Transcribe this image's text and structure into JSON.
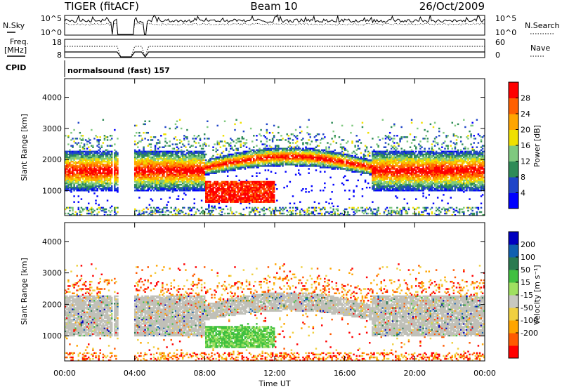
{
  "header": {
    "radar": "TIGER (fitACF)",
    "beam": "Beam 10",
    "date": "26/Oct/2009"
  },
  "top_panel": {
    "left_label": "N.Sky",
    "right_label": "N.Search",
    "left_ticks": [
      "10^5",
      "10^0"
    ],
    "right_ticks": [
      "10^5",
      "10^0"
    ]
  },
  "freq_panel": {
    "left_label_line1": "Freq.",
    "left_label_line2": "[MHz]",
    "right_label": "Nave",
    "left_ticks": [
      "18",
      "8"
    ],
    "right_ticks": [
      "60",
      "0"
    ]
  },
  "cpid": {
    "label": "CPID",
    "program": "normalsound (fast) 157"
  },
  "colors": {
    "power_scale": [
      "#0000ff",
      "#1f45c8",
      "#2e8b57",
      "#7fc97f",
      "#f0e000",
      "#ffa500",
      "#ff6000",
      "#ff0000"
    ],
    "velocity_scale": [
      "#ff0000",
      "#ff5a00",
      "#ffa500",
      "#f0d040",
      "#c8c8c0",
      "#a0e060",
      "#40c040",
      "#2a7a50",
      "#1060b0",
      "#0000c0"
    ],
    "ground_scatter": "#c0c0b8"
  },
  "chart_data": [
    {
      "type": "heatmap",
      "name": "power",
      "ylabel": "Slant Range [km]",
      "ylim": [
        200,
        4600
      ],
      "yticks": [
        "1000",
        "2000",
        "3000",
        "4000"
      ],
      "ytick_values": [
        1000,
        2000,
        3000,
        4000
      ],
      "colorbar_label": "Power [dB]",
      "colorbar_ticks": [
        "4",
        "8",
        "12",
        "16",
        "20",
        "24",
        "28"
      ],
      "colorbar_range": [
        0,
        32
      ]
    },
    {
      "type": "heatmap",
      "name": "velocity",
      "ylabel": "Slant Range [km]",
      "ylim": [
        200,
        4600
      ],
      "yticks": [
        "1000",
        "2000",
        "3000",
        "4000"
      ],
      "ytick_values": [
        1000,
        2000,
        3000,
        4000
      ],
      "colorbar_label": "Velocity [m s⁻¹]",
      "colorbar_ticks": [
        "200",
        "100",
        "50",
        "15",
        "-15",
        "-50",
        "-100",
        "-200"
      ]
    }
  ],
  "xaxis": {
    "label": "Time UT",
    "ticks": [
      "00:00",
      "04:00",
      "08:00",
      "12:00",
      "16:00",
      "20:00",
      "00:00"
    ],
    "tick_hours": [
      0,
      4,
      8,
      12,
      16,
      20,
      24
    ],
    "xlim_hours": [
      0,
      24
    ]
  }
}
